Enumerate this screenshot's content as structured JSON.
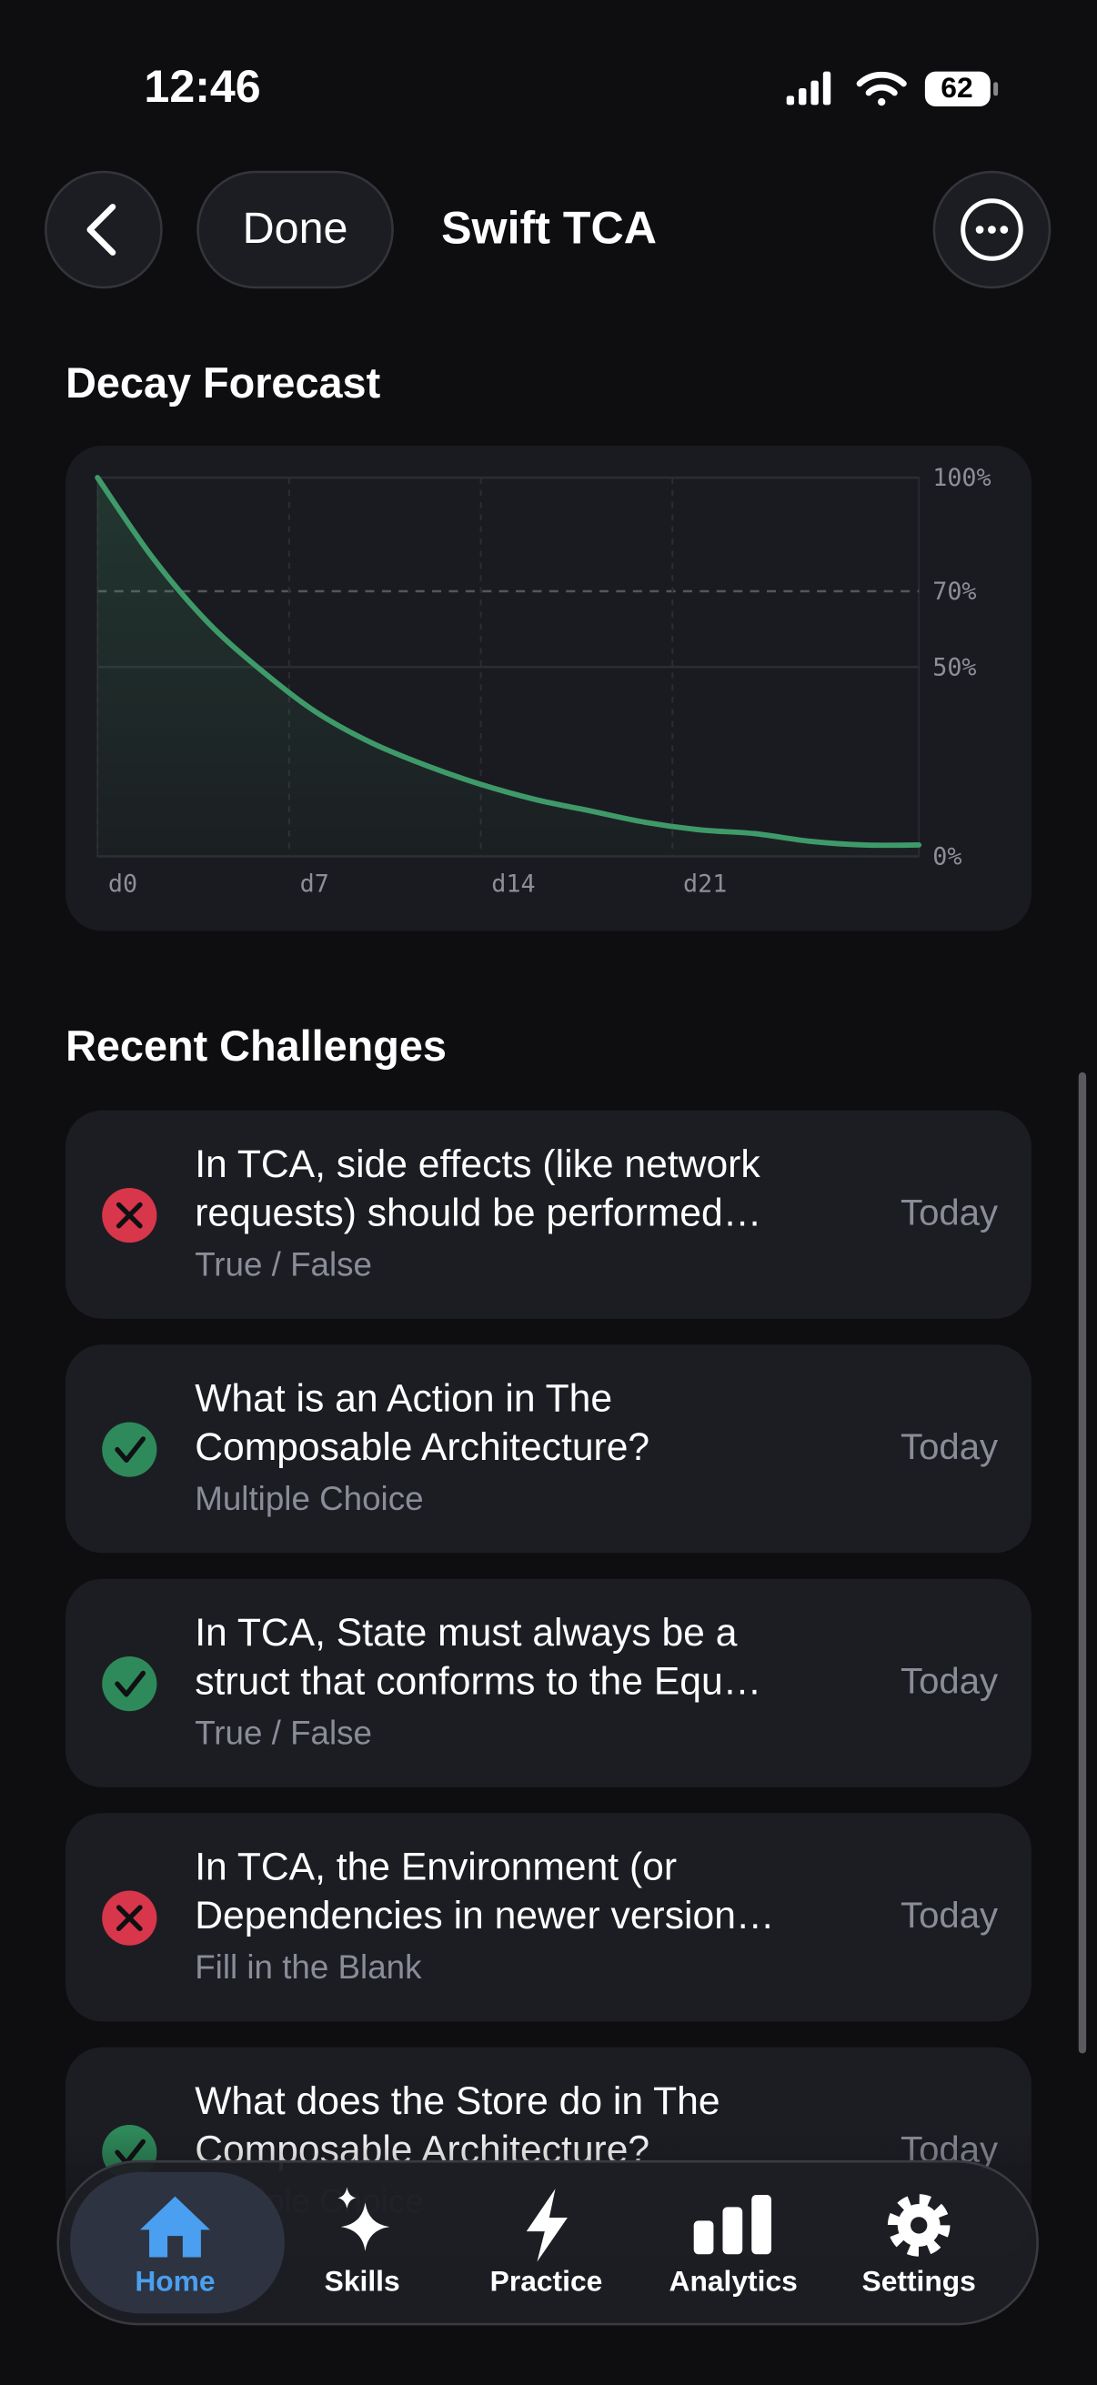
{
  "status_bar": {
    "time": "12:46",
    "battery": "62"
  },
  "header": {
    "back": "back",
    "done": "Done",
    "title": "Swift TCA"
  },
  "chart_data": {
    "type": "line",
    "title": "Decay Forecast",
    "x": [
      0,
      2,
      4,
      6,
      8,
      10,
      12,
      14,
      16,
      18,
      20,
      22,
      24,
      26,
      28,
      30
    ],
    "values": [
      100,
      79,
      62,
      49,
      38,
      30,
      24,
      19,
      15,
      12,
      9,
      7,
      6,
      4,
      3,
      3
    ],
    "color": "#3f9a6a",
    "xlim": [
      0,
      30
    ],
    "ylim": [
      0,
      100
    ],
    "xticks": [
      {
        "value": 0,
        "label": "d0"
      },
      {
        "value": 7,
        "label": "d7"
      },
      {
        "value": 14,
        "label": "d14"
      },
      {
        "value": 21,
        "label": "d21"
      }
    ],
    "yticks": [
      {
        "value": 0,
        "label": "0%"
      },
      {
        "value": 50,
        "label": "50%"
      },
      {
        "value": 70,
        "label": "70%"
      },
      {
        "value": 100,
        "label": "100%"
      }
    ],
    "threshold": 70,
    "grid": true
  },
  "challenges": {
    "title": "Recent Challenges",
    "items": [
      {
        "status": "incorrect",
        "question_lines": [
          "In TCA, side effects (like network",
          "requests) should be performed…"
        ],
        "kind": "True / False",
        "date": "Today"
      },
      {
        "status": "correct",
        "question_lines": [
          "What is an Action in The",
          "Composable Architecture?"
        ],
        "kind": "Multiple Choice",
        "date": "Today"
      },
      {
        "status": "correct",
        "question_lines": [
          "In TCA, State must always be a",
          "struct that conforms to the Equ…"
        ],
        "kind": "True / False",
        "date": "Today"
      },
      {
        "status": "incorrect",
        "question_lines": [
          "In TCA, the Environment (or",
          "Dependencies in newer version…"
        ],
        "kind": "Fill in the Blank",
        "date": "Today"
      },
      {
        "status": "correct",
        "question_lines": [
          "What does the Store do in The",
          "Composable Architecture?"
        ],
        "kind": "Multiple Choice",
        "date": "Today"
      }
    ]
  },
  "tab_bar": {
    "active": 0,
    "tabs": [
      {
        "label": "Home"
      },
      {
        "label": "Skills"
      },
      {
        "label": "Practice"
      },
      {
        "label": "Analytics"
      },
      {
        "label": "Settings"
      }
    ]
  }
}
